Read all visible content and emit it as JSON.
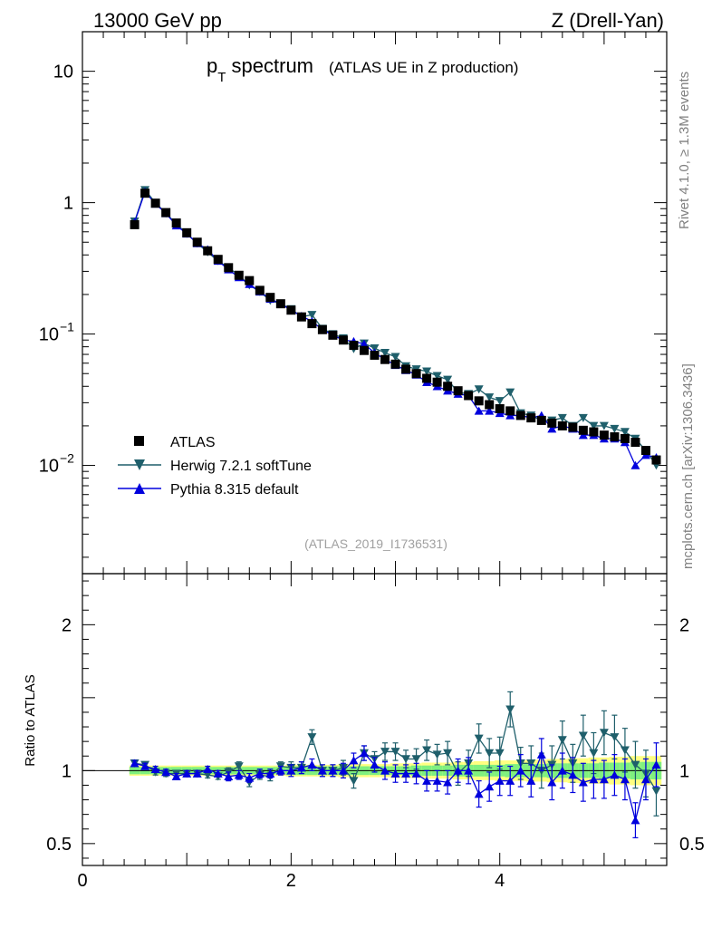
{
  "header": {
    "left": "13000 GeV pp",
    "right": "Z (Drell-Yan)"
  },
  "side": {
    "rivet": "Rivet 4.1.0, ≥ 1.3M events",
    "mcplots": "mcplots.cern.ch [arXiv:1306.3436]"
  },
  "reference": "(ATLAS_2019_I1736531)",
  "colors": {
    "atlas": "#000000",
    "herwig": "#1f5f6b",
    "pythia": "#0000dd",
    "band_inner": "#7ff07f",
    "band_outer": "#ffff80"
  },
  "chart_data": [
    {
      "type": "scatter",
      "title_main": "p",
      "title_sub": "T",
      "title_rest": " spectrum",
      "title_extra": "(ATLAS UE in Z production)",
      "yscale": "log",
      "ylim": [
        0.0015,
        20
      ],
      "xlim": [
        0,
        5.6
      ],
      "y_ticks": [
        {
          "v": 10,
          "label": "10"
        },
        {
          "v": 1,
          "label": "1"
        },
        {
          "v": 0.1,
          "label": "10",
          "exp": "−1"
        },
        {
          "v": 0.01,
          "label": "10",
          "exp": "−2"
        }
      ],
      "legend": [
        "ATLAS",
        "Herwig 7.2.1 softTune",
        "Pythia 8.315 default"
      ],
      "x": [
        0.5,
        0.6,
        0.7,
        0.8,
        0.9,
        1.0,
        1.1,
        1.2,
        1.3,
        1.4,
        1.5,
        1.6,
        1.7,
        1.8,
        1.9,
        2.0,
        2.1,
        2.2,
        2.3,
        2.4,
        2.5,
        2.6,
        2.7,
        2.8,
        2.9,
        3.0,
        3.1,
        3.2,
        3.3,
        3.4,
        3.5,
        3.6,
        3.7,
        3.8,
        3.9,
        4.0,
        4.1,
        4.2,
        4.3,
        4.4,
        4.5,
        4.6,
        4.7,
        4.8,
        4.9,
        5.0,
        5.1,
        5.2,
        5.3,
        5.4,
        5.5
      ],
      "series": [
        {
          "name": "ATLAS",
          "values": [
            0.68,
            1.18,
            0.99,
            0.84,
            0.7,
            0.59,
            0.5,
            0.43,
            0.37,
            0.32,
            0.28,
            0.255,
            0.215,
            0.19,
            0.17,
            0.152,
            0.135,
            0.12,
            0.108,
            0.098,
            0.09,
            0.082,
            0.075,
            0.069,
            0.064,
            0.059,
            0.054,
            0.05,
            0.046,
            0.043,
            0.04,
            0.037,
            0.034,
            0.031,
            0.029,
            0.027,
            0.026,
            0.024,
            0.023,
            0.022,
            0.021,
            0.02,
            0.0195,
            0.0185,
            0.018,
            0.017,
            0.0165,
            0.016,
            0.015,
            0.013,
            0.011
          ]
        },
        {
          "name": "Herwig 7.2.1 softTune",
          "values": [
            0.72,
            1.25,
            1.0,
            0.83,
            0.69,
            0.58,
            0.49,
            0.42,
            0.36,
            0.32,
            0.28,
            0.235,
            0.21,
            0.18,
            0.17,
            0.155,
            0.135,
            0.14,
            0.11,
            0.1,
            0.093,
            0.077,
            0.085,
            0.078,
            0.072,
            0.067,
            0.057,
            0.054,
            0.052,
            0.048,
            0.045,
            0.036,
            0.035,
            0.038,
            0.033,
            0.031,
            0.036,
            0.025,
            0.024,
            0.022,
            0.022,
            0.023,
            0.02,
            0.023,
            0.02,
            0.02,
            0.019,
            0.018,
            0.016,
            0.013,
            0.01
          ]
        },
        {
          "name": "Pythia 8.315 default",
          "values": [
            0.71,
            1.21,
            0.98,
            0.83,
            0.67,
            0.58,
            0.49,
            0.44,
            0.36,
            0.31,
            0.27,
            0.24,
            0.21,
            0.185,
            0.17,
            0.152,
            0.137,
            0.125,
            0.108,
            0.098,
            0.09,
            0.088,
            0.084,
            0.072,
            0.064,
            0.058,
            0.053,
            0.049,
            0.043,
            0.04,
            0.037,
            0.035,
            0.034,
            0.026,
            0.026,
            0.025,
            0.024,
            0.024,
            0.023,
            0.024,
            0.019,
            0.02,
            0.019,
            0.017,
            0.017,
            0.016,
            0.016,
            0.015,
            0.01,
            0.012,
            0.0115
          ]
        }
      ]
    },
    {
      "type": "scatter",
      "ylabel": "Ratio to ATLAS",
      "ylim": [
        0.35,
        2.35
      ],
      "xlim": [
        0,
        5.6
      ],
      "y_ticks": [
        {
          "v": 2,
          "label": "2"
        },
        {
          "v": 1,
          "label": "1"
        },
        {
          "v": 0.5,
          "label": "0.5"
        }
      ],
      "x_ticks": [
        {
          "v": 0,
          "label": "0"
        },
        {
          "v": 2,
          "label": "2"
        },
        {
          "v": 4,
          "label": "4"
        }
      ],
      "x": [
        0.5,
        0.6,
        0.7,
        0.8,
        0.9,
        1.0,
        1.1,
        1.2,
        1.3,
        1.4,
        1.5,
        1.6,
        1.7,
        1.8,
        1.9,
        2.0,
        2.1,
        2.2,
        2.3,
        2.4,
        2.5,
        2.6,
        2.7,
        2.8,
        2.9,
        3.0,
        3.1,
        3.2,
        3.3,
        3.4,
        3.5,
        3.6,
        3.7,
        3.8,
        3.9,
        4.0,
        4.1,
        4.2,
        4.3,
        4.4,
        4.5,
        4.6,
        4.7,
        4.8,
        4.9,
        5.0,
        5.1,
        5.2,
        5.3,
        5.4,
        5.5
      ],
      "band_inner": [
        0.025,
        0.025,
        0.025,
        0.025,
        0.025,
        0.025,
        0.025,
        0.025,
        0.025,
        0.025,
        0.025,
        0.025,
        0.025,
        0.025,
        0.025,
        0.03,
        0.03,
        0.03,
        0.03,
        0.03,
        0.03,
        0.03,
        0.03,
        0.03,
        0.03,
        0.03,
        0.03,
        0.035,
        0.035,
        0.035,
        0.035,
        0.04,
        0.04,
        0.04,
        0.04,
        0.04,
        0.045,
        0.045,
        0.045,
        0.045,
        0.05,
        0.05,
        0.05,
        0.05,
        0.05,
        0.055,
        0.055,
        0.055,
        0.06,
        0.06,
        0.06
      ],
      "band_outer": [
        0.035,
        0.035,
        0.035,
        0.035,
        0.035,
        0.035,
        0.035,
        0.035,
        0.035,
        0.035,
        0.035,
        0.035,
        0.035,
        0.035,
        0.035,
        0.04,
        0.04,
        0.04,
        0.04,
        0.04,
        0.045,
        0.045,
        0.045,
        0.045,
        0.045,
        0.05,
        0.05,
        0.05,
        0.055,
        0.055,
        0.055,
        0.06,
        0.06,
        0.065,
        0.065,
        0.07,
        0.07,
        0.07,
        0.075,
        0.075,
        0.08,
        0.08,
        0.085,
        0.085,
        0.09,
        0.09,
        0.095,
        0.095,
        0.1,
        0.1,
        0.1
      ],
      "series": [
        {
          "name": "Herwig 7.2.1 softTune",
          "values": [
            1.05,
            1.04,
            0.99,
            0.98,
            0.98,
            0.98,
            0.98,
            0.97,
            0.96,
            0.99,
            1.03,
            0.92,
            0.97,
            0.96,
            1.03,
            1.02,
            1.02,
            1.23,
            1.0,
            1.0,
            1.02,
            0.93,
            1.12,
            1.08,
            1.13,
            1.13,
            1.08,
            1.08,
            1.14,
            1.11,
            1.12,
            0.98,
            1.05,
            1.22,
            1.12,
            1.12,
            1.42,
            1.05,
            1.05,
            1.0,
            1.04,
            1.21,
            1.05,
            1.24,
            1.12,
            1.26,
            1.23,
            1.14,
            1.04,
            0.98,
            0.86
          ],
          "errors": [
            0.02,
            0.02,
            0.02,
            0.02,
            0.02,
            0.02,
            0.02,
            0.02,
            0.02,
            0.03,
            0.03,
            0.03,
            0.03,
            0.03,
            0.03,
            0.04,
            0.04,
            0.05,
            0.04,
            0.04,
            0.05,
            0.05,
            0.05,
            0.05,
            0.06,
            0.06,
            0.06,
            0.07,
            0.07,
            0.07,
            0.08,
            0.08,
            0.09,
            0.1,
            0.1,
            0.11,
            0.12,
            0.11,
            0.12,
            0.12,
            0.13,
            0.13,
            0.13,
            0.14,
            0.14,
            0.15,
            0.15,
            0.15,
            0.16,
            0.16,
            0.17
          ]
        },
        {
          "name": "Pythia 8.315 default",
          "values": [
            1.05,
            1.03,
            1.01,
            0.99,
            0.96,
            0.98,
            0.98,
            1.01,
            0.98,
            0.96,
            0.97,
            0.95,
            0.98,
            0.98,
            1.0,
            1.0,
            1.02,
            1.04,
            1.0,
            1.0,
            1.0,
            1.07,
            1.12,
            1.04,
            1.0,
            0.98,
            0.98,
            0.98,
            0.93,
            0.93,
            0.92,
            1.0,
            1.0,
            0.84,
            0.89,
            0.93,
            0.93,
            1.0,
            0.93,
            1.11,
            0.92,
            1.0,
            0.97,
            0.92,
            0.94,
            0.94,
            0.97,
            0.94,
            0.66,
            0.94,
            1.04
          ],
          "errors": [
            0.02,
            0.02,
            0.02,
            0.02,
            0.02,
            0.02,
            0.02,
            0.02,
            0.02,
            0.03,
            0.03,
            0.03,
            0.03,
            0.03,
            0.03,
            0.04,
            0.04,
            0.04,
            0.04,
            0.04,
            0.05,
            0.05,
            0.05,
            0.05,
            0.06,
            0.06,
            0.06,
            0.07,
            0.07,
            0.07,
            0.08,
            0.08,
            0.09,
            0.09,
            0.1,
            0.1,
            0.1,
            0.11,
            0.11,
            0.11,
            0.12,
            0.12,
            0.12,
            0.13,
            0.13,
            0.13,
            0.14,
            0.14,
            0.12,
            0.14,
            0.15
          ]
        }
      ]
    }
  ]
}
